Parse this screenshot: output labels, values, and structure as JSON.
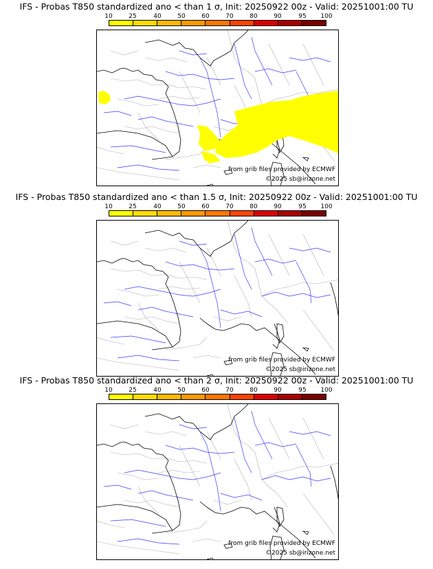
{
  "colorbar": {
    "ticks": [
      "10",
      "25",
      "40",
      "50",
      "60",
      "70",
      "80",
      "90",
      "95",
      "100"
    ],
    "colors": [
      "#ffff00",
      "#ffdd00",
      "#ffbb00",
      "#ff9900",
      "#ff7700",
      "#ff4400",
      "#dd0000",
      "#aa0000",
      "#7a0000"
    ]
  },
  "panels": [
    {
      "title": "IFS - Probas T850  standardized ano < than 1 σ, Init: 20250922 00z - Valid: 20251001:00 TU",
      "credit_source": "from grib files provided by ECMWF",
      "credit_copyright": "©2025 sb@irizone.net",
      "probability_area": "yellow area over southern France, Gulf of Lion, northern Italy and Alps (10-25%)"
    },
    {
      "title": "IFS - Probas T850  standardized ano < than 1.5 σ, Init: 20250922 00z - Valid: 20251001:00 TU",
      "credit_source": "from grib files provided by ECMWF",
      "credit_copyright": "©2025 sb@irizone.net",
      "probability_area": "none"
    },
    {
      "title": "IFS - Probas T850  standardized ano < than 2 σ, Init: 20250922 00z - Valid: 20251001:00 TU",
      "credit_source": "from grib files provided by ECMWF",
      "credit_copyright": "©2025 sb@irizone.net",
      "probability_area": "none"
    }
  ],
  "colors": {
    "coast": "#000000",
    "rivers": "#3a3aff",
    "borders": "#b0b0b0",
    "prob_fill": "#ffff00"
  }
}
